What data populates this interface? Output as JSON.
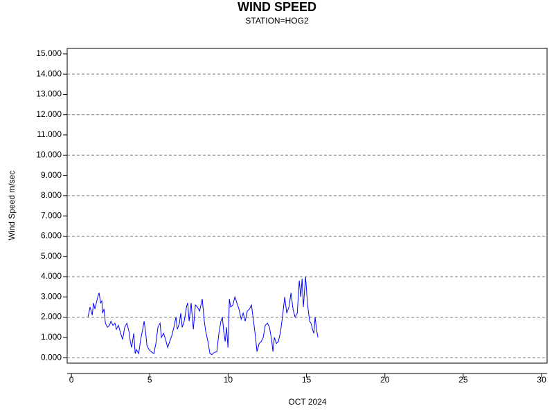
{
  "chart_data": {
    "type": "line",
    "title": "WIND SPEED",
    "subtitle": "STATION=HOG2",
    "y_label": "Wind Speed m/sec",
    "x_label": "OCT 2024",
    "x": [
      1.06,
      1.19,
      1.33,
      1.41,
      1.5,
      1.59,
      1.68,
      1.77,
      1.86,
      1.94,
      1.99,
      2.08,
      2.17,
      2.3,
      2.43,
      2.52,
      2.65,
      2.78,
      2.87,
      3.0,
      3.14,
      3.27,
      3.4,
      3.54,
      3.67,
      3.76,
      3.84,
      3.98,
      4.07,
      4.15,
      4.29,
      4.42,
      4.55,
      4.64,
      4.73,
      4.82,
      4.95,
      5.08,
      5.26,
      5.39,
      5.52,
      5.66,
      5.74,
      5.88,
      6.01,
      6.14,
      6.27,
      6.41,
      6.54,
      6.67,
      6.76,
      6.89,
      6.98,
      7.07,
      7.2,
      7.34,
      7.42,
      7.51,
      7.64,
      7.78,
      7.91,
      8.04,
      8.18,
      8.35,
      8.48,
      8.57,
      8.71,
      8.84,
      8.97,
      9.1,
      9.28,
      9.41,
      9.54,
      9.63,
      9.72,
      9.81,
      9.9,
      9.99,
      10.08,
      10.16,
      10.3,
      10.43,
      10.56,
      10.69,
      10.83,
      10.96,
      11.09,
      11.22,
      11.36,
      11.49,
      11.62,
      11.75,
      11.84,
      11.98,
      12.11,
      12.24,
      12.37,
      12.51,
      12.64,
      12.77,
      12.86,
      12.95,
      13.08,
      13.21,
      13.35,
      13.48,
      13.61,
      13.74,
      13.88,
      14.01,
      14.14,
      14.27,
      14.41,
      14.54,
      14.63,
      14.72,
      14.8,
      14.94,
      15.07,
      15.2,
      15.29,
      15.38,
      15.47,
      15.55,
      15.64,
      15.73
    ],
    "series": [
      {
        "color": "#0000ff",
        "values": [
          2.0,
          2.5,
          2.1,
          2.7,
          2.4,
          2.7,
          3.0,
          3.2,
          2.7,
          2.8,
          2.2,
          2.4,
          1.7,
          1.5,
          1.6,
          1.8,
          1.6,
          1.7,
          1.4,
          1.6,
          1.2,
          0.9,
          1.5,
          1.7,
          1.3,
          0.8,
          0.5,
          1.2,
          0.2,
          0.4,
          0.2,
          0.9,
          1.4,
          1.8,
          1.3,
          0.6,
          0.4,
          0.3,
          0.2,
          0.7,
          1.5,
          1.7,
          1.0,
          1.2,
          0.9,
          0.5,
          0.8,
          1.1,
          1.5,
          2.0,
          1.4,
          1.7,
          2.2,
          1.5,
          1.8,
          2.5,
          2.7,
          1.8,
          2.7,
          1.4,
          2.6,
          2.5,
          2.3,
          2.9,
          1.8,
          1.3,
          0.8,
          0.2,
          0.15,
          0.25,
          0.3,
          1.2,
          1.8,
          2.0,
          1.3,
          0.8,
          1.5,
          0.5,
          2.9,
          2.5,
          2.6,
          3.0,
          2.7,
          2.4,
          1.9,
          2.2,
          1.8,
          2.3,
          2.4,
          2.6,
          1.8,
          1.0,
          0.3,
          0.7,
          0.8,
          1.0,
          1.6,
          1.7,
          1.5,
          0.9,
          0.3,
          1.0,
          0.7,
          0.8,
          1.3,
          2.1,
          3.0,
          2.2,
          2.5,
          3.2,
          2.4,
          2.0,
          2.2,
          3.8,
          3.0,
          3.9,
          2.5,
          4.0,
          2.6,
          1.8,
          1.7,
          1.4,
          1.2,
          2.0,
          1.4,
          1.0
        ]
      }
    ],
    "xlim": [
      -0.27,
      30.35
    ],
    "ylim": [
      -0.27,
      15.27
    ],
    "xticks": [
      0,
      5,
      10,
      15,
      20,
      25,
      30
    ],
    "yticks": [
      {
        "value": 0,
        "label": "0.000"
      },
      {
        "value": 1,
        "label": "1.000"
      },
      {
        "value": 2,
        "label": "2.000"
      },
      {
        "value": 3,
        "label": "3.000"
      },
      {
        "value": 4,
        "label": "4.000"
      },
      {
        "value": 5,
        "label": "5.000"
      },
      {
        "value": 6,
        "label": "6.000"
      },
      {
        "value": 7,
        "label": "7.000"
      },
      {
        "value": 8,
        "label": "8.000"
      },
      {
        "value": 9,
        "label": "9.000"
      },
      {
        "value": 10,
        "label": "10.000"
      },
      {
        "value": 11,
        "label": "11.000"
      },
      {
        "value": 12,
        "label": "12.000"
      },
      {
        "value": 13,
        "label": "13.000"
      },
      {
        "value": 14,
        "label": "14.000"
      },
      {
        "value": 15,
        "label": "15.000"
      }
    ],
    "grid": true
  }
}
